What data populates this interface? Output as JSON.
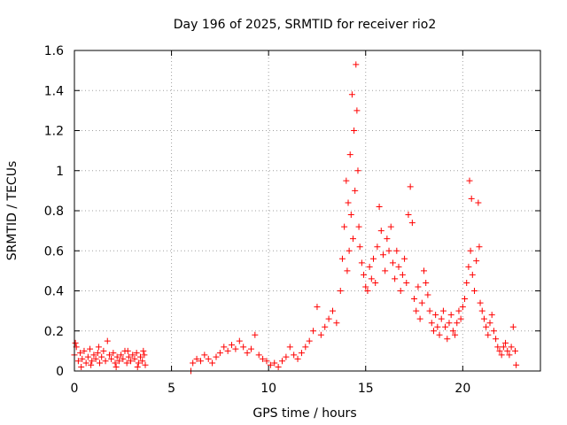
{
  "chart_data": {
    "type": "scatter",
    "title": "Day 196 of 2025, SRMTID for receiver rio2",
    "xlabel": "GPS time / hours",
    "ylabel": "SRMTID / TECUs",
    "xlim": [
      0,
      24
    ],
    "ylim": [
      0,
      1.6
    ],
    "xticks": [
      0,
      5,
      10,
      15,
      20
    ],
    "yticks": [
      0,
      0.2,
      0.4,
      0.6,
      0.8,
      1,
      1.2,
      1.4,
      1.6
    ],
    "ytick_labels": [
      "0",
      "0.2",
      "0.4",
      "0.6",
      "0.8",
      "1",
      "1.2",
      "1.4",
      "1.6"
    ],
    "xtick_labels": [
      "0",
      "5",
      "10",
      "15",
      "20"
    ],
    "grid": true,
    "marker": "plus",
    "color": "#ff0000",
    "series": [
      {
        "name": "rio2",
        "points": [
          [
            0.0,
            0.08
          ],
          [
            0.1,
            0.12
          ],
          [
            0.2,
            0.05
          ],
          [
            0.3,
            0.09
          ],
          [
            0.4,
            0.06
          ],
          [
            0.5,
            0.1
          ],
          [
            0.6,
            0.04
          ],
          [
            0.7,
            0.07
          ],
          [
            0.8,
            0.11
          ],
          [
            0.9,
            0.05
          ],
          [
            1.0,
            0.08
          ],
          [
            1.1,
            0.06
          ],
          [
            1.2,
            0.09
          ],
          [
            1.3,
            0.04
          ],
          [
            1.4,
            0.07
          ],
          [
            1.5,
            0.1
          ],
          [
            1.6,
            0.05
          ],
          [
            1.7,
            0.15
          ],
          [
            1.8,
            0.08
          ],
          [
            1.9,
            0.06
          ],
          [
            2.0,
            0.09
          ],
          [
            2.1,
            0.04
          ],
          [
            2.2,
            0.07
          ],
          [
            2.3,
            0.05
          ],
          [
            2.4,
            0.08
          ],
          [
            2.5,
            0.06
          ],
          [
            2.6,
            0.1
          ],
          [
            2.7,
            0.04
          ],
          [
            2.8,
            0.07
          ],
          [
            2.9,
            0.05
          ],
          [
            3.0,
            0.08
          ],
          [
            3.1,
            0.06
          ],
          [
            3.2,
            0.09
          ],
          [
            3.3,
            0.04
          ],
          [
            3.4,
            0.07
          ],
          [
            3.5,
            0.05
          ],
          [
            3.6,
            0.08
          ],
          [
            3.65,
            0.03
          ],
          [
            0.05,
            0.14
          ],
          [
            0.35,
            0.02
          ],
          [
            0.85,
            0.03
          ],
          [
            1.25,
            0.12
          ],
          [
            2.15,
            0.02
          ],
          [
            2.75,
            0.1
          ],
          [
            3.25,
            0.02
          ],
          [
            3.55,
            0.1
          ],
          [
            6.0,
            0.0
          ],
          [
            6.1,
            0.04
          ],
          [
            6.3,
            0.06
          ],
          [
            6.5,
            0.05
          ],
          [
            6.7,
            0.08
          ],
          [
            6.9,
            0.06
          ],
          [
            7.1,
            0.04
          ],
          [
            7.3,
            0.07
          ],
          [
            7.5,
            0.09
          ],
          [
            7.7,
            0.12
          ],
          [
            7.9,
            0.1
          ],
          [
            8.1,
            0.13
          ],
          [
            8.3,
            0.11
          ],
          [
            8.5,
            0.15
          ],
          [
            8.7,
            0.12
          ],
          [
            8.9,
            0.09
          ],
          [
            9.1,
            0.11
          ],
          [
            9.3,
            0.18
          ],
          [
            9.5,
            0.08
          ],
          [
            9.7,
            0.06
          ],
          [
            9.9,
            0.05
          ],
          [
            10.1,
            0.03
          ],
          [
            10.3,
            0.04
          ],
          [
            10.5,
            0.02
          ],
          [
            10.7,
            0.05
          ],
          [
            10.9,
            0.07
          ],
          [
            11.1,
            0.12
          ],
          [
            11.3,
            0.08
          ],
          [
            11.5,
            0.06
          ],
          [
            11.7,
            0.09
          ],
          [
            11.9,
            0.12
          ],
          [
            12.1,
            0.15
          ],
          [
            12.3,
            0.2
          ],
          [
            12.5,
            0.32
          ],
          [
            12.7,
            0.18
          ],
          [
            12.9,
            0.22
          ],
          [
            13.1,
            0.26
          ],
          [
            13.3,
            0.3
          ],
          [
            13.5,
            0.24
          ],
          [
            13.7,
            0.4
          ],
          [
            13.8,
            0.56
          ],
          [
            13.9,
            0.72
          ],
          [
            14.0,
            0.95
          ],
          [
            14.05,
            0.5
          ],
          [
            14.1,
            0.84
          ],
          [
            14.15,
            0.6
          ],
          [
            14.2,
            1.08
          ],
          [
            14.25,
            0.78
          ],
          [
            14.3,
            1.38
          ],
          [
            14.35,
            0.66
          ],
          [
            14.4,
            1.2
          ],
          [
            14.45,
            0.9
          ],
          [
            14.5,
            1.53
          ],
          [
            14.55,
            1.3
          ],
          [
            14.6,
            1.0
          ],
          [
            14.65,
            0.72
          ],
          [
            14.7,
            0.62
          ],
          [
            14.8,
            0.54
          ],
          [
            14.9,
            0.48
          ],
          [
            15.0,
            0.42
          ],
          [
            15.1,
            0.4
          ],
          [
            15.2,
            0.52
          ],
          [
            15.3,
            0.46
          ],
          [
            15.4,
            0.56
          ],
          [
            15.5,
            0.44
          ],
          [
            15.6,
            0.62
          ],
          [
            15.7,
            0.82
          ],
          [
            15.8,
            0.7
          ],
          [
            15.9,
            0.58
          ],
          [
            16.0,
            0.5
          ],
          [
            16.1,
            0.66
          ],
          [
            16.2,
            0.6
          ],
          [
            16.3,
            0.72
          ],
          [
            16.4,
            0.54
          ],
          [
            16.5,
            0.46
          ],
          [
            16.6,
            0.6
          ],
          [
            16.7,
            0.52
          ],
          [
            16.8,
            0.4
          ],
          [
            16.9,
            0.48
          ],
          [
            17.0,
            0.56
          ],
          [
            17.1,
            0.44
          ],
          [
            17.2,
            0.78
          ],
          [
            17.3,
            0.92
          ],
          [
            17.4,
            0.74
          ],
          [
            17.5,
            0.36
          ],
          [
            17.6,
            0.3
          ],
          [
            17.7,
            0.42
          ],
          [
            17.8,
            0.26
          ],
          [
            17.9,
            0.34
          ],
          [
            18.0,
            0.5
          ],
          [
            18.1,
            0.44
          ],
          [
            18.2,
            0.38
          ],
          [
            18.3,
            0.3
          ],
          [
            18.4,
            0.24
          ],
          [
            18.5,
            0.2
          ],
          [
            18.6,
            0.28
          ],
          [
            18.7,
            0.22
          ],
          [
            18.8,
            0.18
          ],
          [
            18.9,
            0.26
          ],
          [
            19.0,
            0.3
          ],
          [
            19.1,
            0.22
          ],
          [
            19.2,
            0.16
          ],
          [
            19.3,
            0.24
          ],
          [
            19.4,
            0.28
          ],
          [
            19.5,
            0.2
          ],
          [
            19.6,
            0.18
          ],
          [
            19.7,
            0.24
          ],
          [
            19.8,
            0.3
          ],
          [
            19.9,
            0.26
          ],
          [
            20.0,
            0.32
          ],
          [
            20.1,
            0.36
          ],
          [
            20.2,
            0.44
          ],
          [
            20.3,
            0.52
          ],
          [
            20.35,
            0.95
          ],
          [
            20.4,
            0.6
          ],
          [
            20.45,
            0.86
          ],
          [
            20.5,
            0.48
          ],
          [
            20.6,
            0.4
          ],
          [
            20.7,
            0.55
          ],
          [
            20.8,
            0.84
          ],
          [
            20.85,
            0.62
          ],
          [
            20.9,
            0.34
          ],
          [
            21.0,
            0.3
          ],
          [
            21.1,
            0.26
          ],
          [
            21.2,
            0.22
          ],
          [
            21.3,
            0.18
          ],
          [
            21.4,
            0.24
          ],
          [
            21.5,
            0.28
          ],
          [
            21.6,
            0.2
          ],
          [
            21.7,
            0.16
          ],
          [
            21.8,
            0.12
          ],
          [
            21.9,
            0.1
          ],
          [
            22.0,
            0.08
          ],
          [
            22.1,
            0.12
          ],
          [
            22.2,
            0.14
          ],
          [
            22.3,
            0.1
          ],
          [
            22.4,
            0.08
          ],
          [
            22.5,
            0.12
          ],
          [
            22.6,
            0.22
          ],
          [
            22.7,
            0.1
          ],
          [
            22.75,
            0.03
          ]
        ]
      }
    ]
  }
}
